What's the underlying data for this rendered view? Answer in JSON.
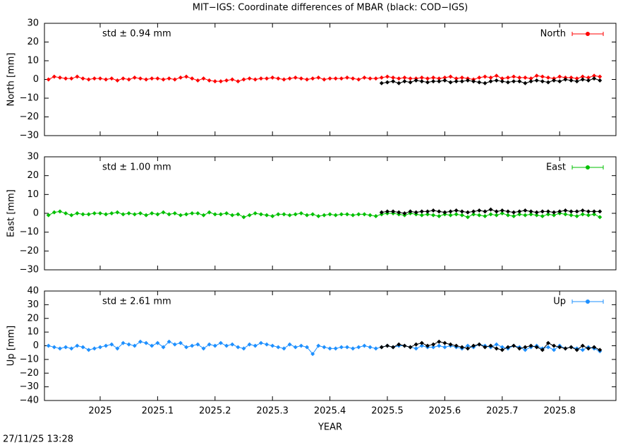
{
  "chart_data": [
    {
      "type": "line",
      "title": "MIT−IGS: Coordinate differences of MBAR (black: COD−IGS)",
      "ylabel": "North [mm]",
      "annotation": "std ± 0.94 mm",
      "ylim": [
        -30,
        30
      ],
      "yticks": [
        {
          "value": -30,
          "label": "−30"
        },
        {
          "value": -20,
          "label": "−20"
        },
        {
          "value": -10,
          "label": "−10"
        },
        0,
        10,
        20,
        30
      ],
      "series": [
        {
          "name": "North",
          "color": "#ff0000",
          "x": [
            2024.91,
            2024.92,
            2024.93,
            2024.94,
            2024.95,
            2024.96,
            2024.97,
            2024.98,
            2024.99,
            2025.0,
            2025.01,
            2025.02,
            2025.03,
            2025.04,
            2025.05,
            2025.06,
            2025.07,
            2025.08,
            2025.09,
            2025.1,
            2025.11,
            2025.12,
            2025.13,
            2025.14,
            2025.15,
            2025.16,
            2025.17,
            2025.18,
            2025.19,
            2025.2,
            2025.21,
            2025.22,
            2025.23,
            2025.24,
            2025.25,
            2025.26,
            2025.27,
            2025.28,
            2025.29,
            2025.3,
            2025.31,
            2025.32,
            2025.33,
            2025.34,
            2025.35,
            2025.36,
            2025.37,
            2025.38,
            2025.39,
            2025.4,
            2025.41,
            2025.42,
            2025.43,
            2025.44,
            2025.45,
            2025.46,
            2025.47,
            2025.48,
            2025.49,
            2025.5,
            2025.51,
            2025.52,
            2025.53,
            2025.54,
            2025.55,
            2025.56,
            2025.57,
            2025.58,
            2025.59,
            2025.6,
            2025.61,
            2025.62,
            2025.63,
            2025.64,
            2025.65,
            2025.66,
            2025.67,
            2025.68,
            2025.69,
            2025.7,
            2025.71,
            2025.72,
            2025.73,
            2025.74,
            2025.75,
            2025.76,
            2025.77,
            2025.78,
            2025.79,
            2025.8,
            2025.81,
            2025.82,
            2025.83,
            2025.84,
            2025.85,
            2025.86,
            2025.87
          ],
          "values": [
            0,
            1.5,
            1,
            0.5,
            0.5,
            1.5,
            0.5,
            0,
            0.5,
            0.5,
            0,
            0.5,
            -0.5,
            0.5,
            0,
            1,
            0.5,
            0,
            0.5,
            0.5,
            0,
            0.5,
            0,
            1,
            1.5,
            0.5,
            -0.5,
            0.5,
            -0.5,
            -1,
            -1,
            -0.5,
            0,
            -1,
            0,
            0.5,
            0,
            0.5,
            0.5,
            1,
            0.5,
            0,
            0.5,
            1,
            0.5,
            0,
            0.5,
            1,
            0,
            0.5,
            0.5,
            0.5,
            1,
            0.5,
            0,
            1,
            0.5,
            0.5,
            1,
            1.5,
            1,
            0.5,
            1,
            0.5,
            0.5,
            1,
            0.5,
            1,
            0.5,
            1,
            1.5,
            0.5,
            1,
            0.5,
            0,
            1,
            1.5,
            1,
            2,
            0.5,
            1,
            1.5,
            1,
            1,
            0.5,
            2,
            1.5,
            1,
            0.5,
            1.5,
            1,
            1,
            0.5,
            1.5,
            1,
            2,
            1.5
          ]
        },
        {
          "color": "#000000",
          "x": [
            2025.49,
            2025.5,
            2025.51,
            2025.52,
            2025.53,
            2025.54,
            2025.55,
            2025.56,
            2025.57,
            2025.58,
            2025.59,
            2025.6,
            2025.61,
            2025.62,
            2025.63,
            2025.64,
            2025.65,
            2025.66,
            2025.67,
            2025.68,
            2025.69,
            2025.7,
            2025.71,
            2025.72,
            2025.73,
            2025.74,
            2025.75,
            2025.76,
            2025.77,
            2025.78,
            2025.79,
            2025.8,
            2025.81,
            2025.82,
            2025.83,
            2025.84,
            2025.85,
            2025.86,
            2025.87
          ],
          "values": [
            -2,
            -1.5,
            -1,
            -2,
            -1,
            -1.5,
            -0.5,
            -1,
            -1.5,
            -1,
            -1,
            -0.5,
            -1.5,
            -1,
            -1,
            -0.5,
            -1,
            -1.5,
            -2,
            -1,
            -0.5,
            -1,
            -1.5,
            -1,
            -1,
            -2,
            -1,
            -0.5,
            -1,
            -1.5,
            -0.5,
            -1,
            0,
            -0.5,
            -1,
            0,
            -0.5,
            0.5,
            -0.5
          ]
        }
      ]
    },
    {
      "type": "line",
      "ylabel": "East [mm]",
      "annotation": "std ± 1.00 mm",
      "ylim": [
        -30,
        30
      ],
      "yticks": [
        {
          "value": -30,
          "label": "−30"
        },
        {
          "value": -20,
          "label": "−20"
        },
        {
          "value": -10,
          "label": "−10"
        },
        0,
        10,
        20,
        30
      ],
      "series": [
        {
          "name": "East",
          "color": "#00c000",
          "x": [
            2024.91,
            2024.92,
            2024.93,
            2024.94,
            2024.95,
            2024.96,
            2024.97,
            2024.98,
            2024.99,
            2025.0,
            2025.01,
            2025.02,
            2025.03,
            2025.04,
            2025.05,
            2025.06,
            2025.07,
            2025.08,
            2025.09,
            2025.1,
            2025.11,
            2025.12,
            2025.13,
            2025.14,
            2025.15,
            2025.16,
            2025.17,
            2025.18,
            2025.19,
            2025.2,
            2025.21,
            2025.22,
            2025.23,
            2025.24,
            2025.25,
            2025.26,
            2025.27,
            2025.28,
            2025.29,
            2025.3,
            2025.31,
            2025.32,
            2025.33,
            2025.34,
            2025.35,
            2025.36,
            2025.37,
            2025.38,
            2025.39,
            2025.4,
            2025.41,
            2025.42,
            2025.43,
            2025.44,
            2025.45,
            2025.46,
            2025.47,
            2025.48,
            2025.49,
            2025.5,
            2025.51,
            2025.52,
            2025.53,
            2025.54,
            2025.55,
            2025.56,
            2025.57,
            2025.58,
            2025.59,
            2025.6,
            2025.61,
            2025.62,
            2025.63,
            2025.64,
            2025.65,
            2025.66,
            2025.67,
            2025.68,
            2025.69,
            2025.7,
            2025.71,
            2025.72,
            2025.73,
            2025.74,
            2025.75,
            2025.76,
            2025.77,
            2025.78,
            2025.79,
            2025.8,
            2025.81,
            2025.82,
            2025.83,
            2025.84,
            2025.85,
            2025.86,
            2025.87
          ],
          "values": [
            -1,
            0.5,
            1,
            0,
            -1,
            0,
            -0.5,
            -0.5,
            0,
            0,
            -0.5,
            0,
            0.5,
            -0.5,
            0,
            -0.5,
            0,
            -1,
            0,
            -0.5,
            0.5,
            -0.5,
            0,
            -1,
            -0.5,
            0,
            0,
            -1,
            0.5,
            -0.5,
            -0.5,
            0,
            -1,
            -0.5,
            -2,
            -1,
            0,
            -0.5,
            -1,
            -1.5,
            -0.5,
            -0.5,
            -1,
            -0.5,
            0,
            -1,
            -0.5,
            -1.5,
            -1,
            -0.5,
            -1,
            -0.5,
            -0.5,
            -1,
            -0.5,
            -0.5,
            -1,
            -1.5,
            -0.5,
            0,
            0,
            -0.5,
            -1,
            0,
            -0.5,
            -1,
            -0.5,
            -1,
            -1.5,
            -0.5,
            -1,
            -0.5,
            -1,
            -2,
            -0.5,
            -1,
            -1.5,
            -0.5,
            -1,
            0,
            -1,
            -1.5,
            -0.5,
            -1,
            -0.5,
            -1,
            -1.5,
            -0.5,
            -1,
            0,
            -0.5,
            -1,
            -1.5,
            -0.5,
            -1,
            -0.5,
            -2
          ]
        },
        {
          "color": "#000000",
          "x": [
            2025.49,
            2025.5,
            2025.51,
            2025.52,
            2025.53,
            2025.54,
            2025.55,
            2025.56,
            2025.57,
            2025.58,
            2025.59,
            2025.6,
            2025.61,
            2025.62,
            2025.63,
            2025.64,
            2025.65,
            2025.66,
            2025.67,
            2025.68,
            2025.69,
            2025.7,
            2025.71,
            2025.72,
            2025.73,
            2025.74,
            2025.75,
            2025.76,
            2025.77,
            2025.78,
            2025.79,
            2025.8,
            2025.81,
            2025.82,
            2025.83,
            2025.84,
            2025.85,
            2025.86,
            2025.87
          ],
          "values": [
            0.5,
            1,
            1,
            0.5,
            0,
            1,
            0.5,
            1,
            1,
            1.5,
            1,
            0.5,
            1,
            1.5,
            1,
            0.5,
            1,
            1.5,
            1,
            2,
            1,
            1.5,
            1,
            0.5,
            1,
            1.5,
            1,
            0.5,
            1,
            1,
            0.5,
            1,
            1.5,
            1,
            1,
            1.5,
            1,
            1,
            1
          ]
        }
      ]
    },
    {
      "type": "line",
      "ylabel": "Up [mm]",
      "annotation": "std ± 2.61 mm",
      "xlabel": "YEAR",
      "xlim": [
        2024.903,
        2025.898
      ],
      "xticks": [
        2025,
        2025.1,
        2025.2,
        2025.3,
        2025.4,
        2025.5,
        2025.6,
        2025.7,
        2025.8
      ],
      "ylim": [
        -40,
        40
      ],
      "yticks": [
        {
          "value": -40,
          "label": "−40"
        },
        {
          "value": -30,
          "label": "−30"
        },
        {
          "value": -20,
          "label": "−20"
        },
        {
          "value": -10,
          "label": "−10"
        },
        0,
        10,
        20,
        30,
        40
      ],
      "series": [
        {
          "name": "Up",
          "color": "#1e90ff",
          "x": [
            2024.91,
            2024.92,
            2024.93,
            2024.94,
            2024.95,
            2024.96,
            2024.97,
            2024.98,
            2024.99,
            2025.0,
            2025.01,
            2025.02,
            2025.03,
            2025.04,
            2025.05,
            2025.06,
            2025.07,
            2025.08,
            2025.09,
            2025.1,
            2025.11,
            2025.12,
            2025.13,
            2025.14,
            2025.15,
            2025.16,
            2025.17,
            2025.18,
            2025.19,
            2025.2,
            2025.21,
            2025.22,
            2025.23,
            2025.24,
            2025.25,
            2025.26,
            2025.27,
            2025.28,
            2025.29,
            2025.3,
            2025.31,
            2025.32,
            2025.33,
            2025.34,
            2025.35,
            2025.36,
            2025.37,
            2025.38,
            2025.39,
            2025.4,
            2025.41,
            2025.42,
            2025.43,
            2025.44,
            2025.45,
            2025.46,
            2025.47,
            2025.48,
            2025.49,
            2025.5,
            2025.51,
            2025.52,
            2025.53,
            2025.54,
            2025.55,
            2025.56,
            2025.57,
            2025.58,
            2025.59,
            2025.6,
            2025.61,
            2025.62,
            2025.63,
            2025.64,
            2025.65,
            2025.66,
            2025.67,
            2025.68,
            2025.69,
            2025.7,
            2025.71,
            2025.72,
            2025.73,
            2025.74,
            2025.75,
            2025.76,
            2025.77,
            2025.78,
            2025.79,
            2025.8,
            2025.81,
            2025.82,
            2025.83,
            2025.84,
            2025.85,
            2025.86,
            2025.87
          ],
          "values": [
            0,
            -1,
            -2,
            -1,
            -2,
            0,
            -1,
            -3,
            -2,
            -1,
            0,
            1,
            -2,
            2,
            1,
            0,
            3,
            2,
            0,
            2,
            -1,
            3,
            1,
            2,
            -1,
            0,
            1,
            -2,
            1,
            0,
            2,
            0,
            1,
            -1,
            -2,
            1,
            0,
            2,
            1,
            0,
            -1,
            -2,
            1,
            -1,
            0,
            -1,
            -6,
            0,
            -1,
            -2,
            -2,
            -1,
            -1,
            -2,
            -1,
            0,
            -1,
            -2,
            -1,
            0,
            -1,
            0,
            0,
            -1,
            -2,
            0,
            -1,
            -1,
            0,
            -1,
            0,
            -1,
            -2,
            0,
            -1,
            1,
            0,
            -1,
            1,
            -1,
            -2,
            0,
            -1,
            -3,
            -1,
            0,
            -2,
            -1,
            -3,
            0,
            -2,
            -1,
            -2,
            -3,
            -1,
            -2,
            -4
          ]
        },
        {
          "color": "#000000",
          "x": [
            2025.49,
            2025.5,
            2025.51,
            2025.52,
            2025.53,
            2025.54,
            2025.55,
            2025.56,
            2025.57,
            2025.58,
            2025.59,
            2025.6,
            2025.61,
            2025.62,
            2025.63,
            2025.64,
            2025.65,
            2025.66,
            2025.67,
            2025.68,
            2025.69,
            2025.7,
            2025.71,
            2025.72,
            2025.73,
            2025.74,
            2025.75,
            2025.76,
            2025.77,
            2025.78,
            2025.79,
            2025.8,
            2025.81,
            2025.82,
            2025.83,
            2025.84,
            2025.85,
            2025.86,
            2025.87
          ],
          "values": [
            -1,
            0,
            -1,
            1,
            0,
            -1,
            1,
            2,
            0,
            1,
            3,
            2,
            1,
            0,
            -1,
            -2,
            0,
            1,
            -1,
            0,
            -2,
            -3,
            -1,
            0,
            -2,
            -1,
            0,
            -1,
            -3,
            2,
            0,
            -1,
            -2,
            -1,
            -3,
            0,
            -2,
            -1,
            -3
          ]
        }
      ]
    }
  ],
  "footer": "27/11/25 13:28"
}
